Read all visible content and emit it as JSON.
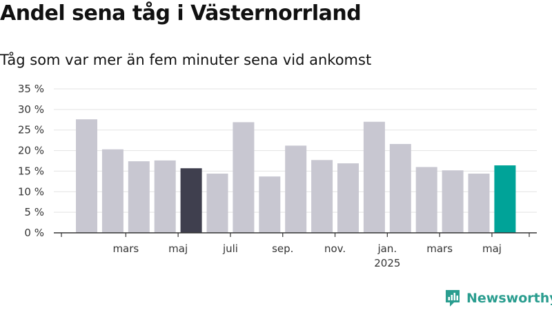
{
  "title": "Andel sena tåg i Västernorrland",
  "subtitle": "Tåg som var mer än fem minuter sena vid ankomst",
  "logo_text": "Newsworthy",
  "chart_data": {
    "type": "bar",
    "title": "Andel sena tåg i Västernorrland",
    "subtitle": "Tåg som var mer än fem minuter sena vid ankomst",
    "xlabel": "",
    "ylabel": "",
    "ylim": [
      0,
      35
    ],
    "y_ticks": [
      0,
      5,
      10,
      15,
      20,
      25,
      30,
      35
    ],
    "y_tick_labels": [
      "0 %",
      "5 %",
      "10 %",
      "15 %",
      "20 %",
      "25 %",
      "30 %",
      "35 %"
    ],
    "grid": true,
    "x_tick_labels": [
      {
        "label": "mars",
        "after_bar": 1
      },
      {
        "label": "maj",
        "after_bar": 3
      },
      {
        "label": "juli",
        "after_bar": 5
      },
      {
        "label": "sep.",
        "after_bar": 7
      },
      {
        "label": "nov.",
        "after_bar": 9
      },
      {
        "label": "jan.",
        "after_bar": 11,
        "sub": "2025"
      },
      {
        "label": "mars",
        "after_bar": 13
      },
      {
        "label": "maj",
        "after_bar": 15
      }
    ],
    "values": [
      27.6,
      20.3,
      17.4,
      17.6,
      15.7,
      14.4,
      26.9,
      13.7,
      21.2,
      17.7,
      16.9,
      27.0,
      21.6,
      16.0,
      15.2,
      14.4,
      16.4
    ],
    "highlight": {
      "4": "#3f3f4e",
      "16": "#00a398"
    },
    "colors": {
      "bar": "#c8c7d1",
      "dark_highlight": "#3f3f4e",
      "latest_highlight": "#00a398",
      "grid": "#e3e3e3",
      "axis": "#333333"
    }
  }
}
